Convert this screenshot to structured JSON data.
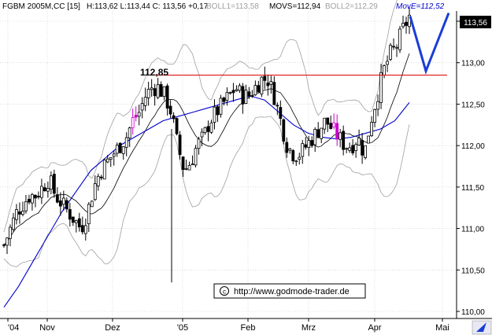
{
  "header": {
    "symbol": "FGBM 2005M,CC [15]",
    "ohlc": "H:113,62 L:113,44 C: 113,56 +0,17",
    "boll1": "BOLL1=113,58",
    "movs": "MOVS=112,94",
    "boll2": "BOLL2=112,29",
    "move": "MovE=112,52"
  },
  "last_price_badge": "113,56",
  "resistance_label": "112,85",
  "watermark": "http://www.godmode-trader.de",
  "watermark_icon": "copyright-icon",
  "colors": {
    "background": "#ffffff",
    "grid": "#c8c8c8",
    "candle": "#000000",
    "highlight_candle": "#cc00cc",
    "resistance": "#e00000",
    "ema": "#0000cc",
    "bollinger": "#a0a0a0",
    "sma": "#000000",
    "projection": "#1a3dd6",
    "badge_bg": "#000000",
    "badge_fg": "#ffffff"
  },
  "chart_data": {
    "type": "candlestick",
    "y_axis_ticks": [
      "113,50",
      "113,00",
      "112,50",
      "112,00",
      "111,50",
      "111,00",
      "110,50",
      "110,00"
    ],
    "x_axis_ticks": [
      "'04",
      "Nov",
      "Dez",
      "'05",
      "Feb",
      "Mrz",
      "Apr",
      "Mai"
    ],
    "ylim": [
      109.95,
      113.75
    ],
    "resistance_level": 112.85,
    "grid": true,
    "series_values": {
      "closes_approx": [
        110.8,
        111.0,
        111.2,
        111.3,
        111.4,
        111.4,
        111.5,
        111.6,
        111.4,
        111.3,
        111.2,
        111.1,
        111.0,
        111.2,
        111.5,
        111.7,
        111.8,
        111.9,
        112.0,
        112.1,
        112.3,
        112.4,
        112.6,
        112.7,
        112.7,
        112.6,
        112.4,
        112.0,
        111.7,
        111.8,
        112.0,
        112.1,
        112.3,
        112.4,
        112.5,
        112.6,
        112.7,
        112.6,
        112.6,
        112.7,
        112.8,
        112.8,
        112.6,
        112.3,
        112.0,
        111.9,
        111.9,
        112.0,
        112.1,
        112.2,
        112.3,
        112.2,
        112.1,
        112.0,
        112.0,
        112.1,
        111.9,
        112.3,
        112.6,
        112.9,
        113.1,
        113.2,
        113.4,
        113.56
      ],
      "ema_approx": [
        110.05,
        110.3,
        110.6,
        110.9,
        111.2,
        111.45,
        111.7,
        111.85,
        112.0,
        112.1,
        112.2,
        112.3,
        112.35,
        112.4,
        112.45,
        112.5,
        112.55,
        112.6,
        112.55,
        112.4,
        112.25,
        112.15,
        112.1,
        112.08,
        112.1,
        112.15,
        112.2,
        112.3,
        112.52
      ],
      "projection": [
        113.56,
        112.9,
        113.6
      ]
    }
  }
}
